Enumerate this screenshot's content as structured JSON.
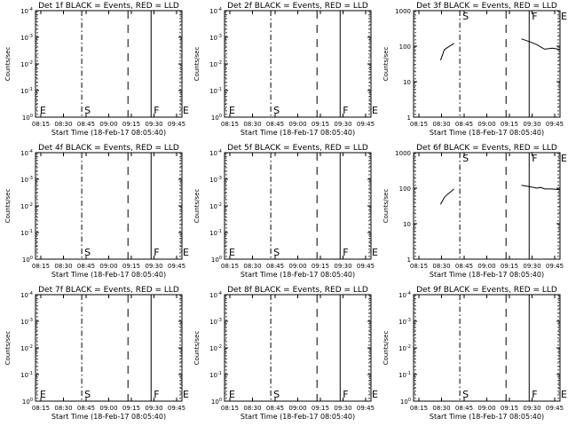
{
  "chart_data": [
    {
      "type": "line",
      "title": "Det 1f BLACK = Events, RED = LLD",
      "xlabel": "Start Time (18-Feb-17 08:05:40)",
      "ylabel": "Counts/sec",
      "y_scale": "log",
      "ylim": [
        1e-06,
        0.0001
      ],
      "xlim": [
        "08:10",
        "08:48"
      ],
      "x_ticks": [
        "08:15",
        "08:30",
        "08:45",
        "09:00",
        "09:15",
        "09:30",
        "09:45"
      ],
      "y_ticks": [
        {
          "mantissa": "10",
          "exp": "0"
        },
        {
          "mantissa": "10",
          "exp": "-1"
        },
        {
          "mantissa": "10",
          "exp": "-2"
        },
        {
          "mantissa": "10",
          "exp": "-3"
        },
        {
          "mantissa": "10",
          "exp": "-4"
        }
      ],
      "markers": [
        {
          "label": "E",
          "x": "08:10",
          "style": "dotted"
        },
        {
          "label": "S",
          "x": "08:22",
          "style": "dashdot"
        },
        {
          "label": "",
          "x": "08:34",
          "style": "dashed"
        },
        {
          "label": "F",
          "x": "08:40",
          "style": "solid"
        },
        {
          "label": "E",
          "x": "08:48",
          "style": "dotted"
        }
      ],
      "series": []
    },
    {
      "type": "line",
      "title": "Det 2f BLACK = Events, RED = LLD",
      "xlabel": "Start Time (18-Feb-17 08:05:40)",
      "ylabel": "Counts/sec",
      "y_scale": "log",
      "xlim": [
        "08:10",
        "08:48"
      ],
      "x_ticks": [
        "08:15",
        "08:30",
        "08:45",
        "09:00",
        "09:15",
        "09:30",
        "09:45"
      ],
      "y_ticks": [
        {
          "mantissa": "10",
          "exp": "0"
        },
        {
          "mantissa": "10",
          "exp": "-1"
        },
        {
          "mantissa": "10",
          "exp": "-2"
        },
        {
          "mantissa": "10",
          "exp": "-3"
        },
        {
          "mantissa": "10",
          "exp": "-4"
        }
      ],
      "markers": [
        {
          "label": "E",
          "x": "08:10",
          "style": "dotted"
        },
        {
          "label": "S",
          "x": "08:22",
          "style": "dashdot"
        },
        {
          "label": "",
          "x": "08:34",
          "style": "dashed"
        },
        {
          "label": "F",
          "x": "08:40",
          "style": "solid"
        },
        {
          "label": "E",
          "x": "08:48",
          "style": "dotted"
        }
      ],
      "series": []
    },
    {
      "type": "line",
      "title": "Det 3f BLACK = Events, RED = LLD",
      "xlabel": "Start Time (18-Feb-17 08:05:40)",
      "ylabel": "Counts/sec",
      "y_scale": "log",
      "ylim": [
        1,
        1000
      ],
      "xlim": [
        "08:10",
        "08:48"
      ],
      "x_ticks": [
        "08:15",
        "08:30",
        "08:45",
        "09:00",
        "09:15",
        "09:30",
        "09:45"
      ],
      "y_ticks": [
        {
          "mantissa": "1",
          "exp": ""
        },
        {
          "mantissa": "10",
          "exp": ""
        },
        {
          "mantissa": "100",
          "exp": ""
        },
        {
          "mantissa": "1000",
          "exp": ""
        }
      ],
      "markers": [
        {
          "label": "",
          "x": "08:10",
          "style": "dotted"
        },
        {
          "label": "S",
          "x": "08:22",
          "style": "dashdot"
        },
        {
          "label": "",
          "x": "08:34",
          "style": "dashed"
        },
        {
          "label": "F",
          "x": "08:40",
          "style": "solid"
        },
        {
          "label": "E",
          "x": "08:48",
          "style": "dotted"
        }
      ],
      "series": [
        {
          "segments": [
            [
              [
                "08:17",
                40
              ],
              [
                "08:18",
                80
              ],
              [
                "08:19",
                95
              ],
              [
                "08:20",
                110
              ],
              [
                "08:20.5",
                120
              ]
            ],
            [
              [
                "08:38",
                160
              ],
              [
                "08:40",
                135
              ],
              [
                "08:42",
                110
              ],
              [
                "08:43",
                95
              ],
              [
                "08:44",
                82
              ],
              [
                "08:46",
                88
              ],
              [
                "08:47",
                84
              ],
              [
                "08:48",
                80
              ]
            ]
          ]
        }
      ]
    },
    {
      "type": "line",
      "title": "Det 4f BLACK = Events, RED = LLD",
      "xlabel": "Start Time (18-Feb-17 08:05:40)",
      "ylabel": "Counts/sec",
      "y_scale": "log",
      "xlim": [
        "08:10",
        "08:48"
      ],
      "x_ticks": [
        "08:15",
        "08:30",
        "08:45",
        "09:00",
        "09:15",
        "09:30",
        "09:45"
      ],
      "y_ticks": [
        {
          "mantissa": "10",
          "exp": "0"
        },
        {
          "mantissa": "10",
          "exp": "-1"
        },
        {
          "mantissa": "10",
          "exp": "-2"
        },
        {
          "mantissa": "10",
          "exp": "-3"
        },
        {
          "mantissa": "10",
          "exp": "-4"
        }
      ],
      "markers": [
        {
          "label": "",
          "x": "08:10",
          "style": "dotted"
        },
        {
          "label": "S",
          "x": "08:22",
          "style": "dashdot"
        },
        {
          "label": "",
          "x": "08:34",
          "style": "dashed"
        },
        {
          "label": "F",
          "x": "08:40",
          "style": "solid"
        },
        {
          "label": "E",
          "x": "08:48",
          "style": "dotted"
        }
      ],
      "series": []
    },
    {
      "type": "line",
      "title": "Det 5f BLACK = Events, RED = LLD",
      "xlabel": "Start Time (18-Feb-17 08:05:40)",
      "ylabel": "Counts/sec",
      "y_scale": "log",
      "xlim": [
        "08:10",
        "08:48"
      ],
      "x_ticks": [
        "08:15",
        "08:30",
        "08:45",
        "09:00",
        "09:15",
        "09:30",
        "09:45"
      ],
      "y_ticks": [
        {
          "mantissa": "10",
          "exp": "0"
        },
        {
          "mantissa": "10",
          "exp": "-1"
        },
        {
          "mantissa": "10",
          "exp": "-2"
        },
        {
          "mantissa": "10",
          "exp": "-3"
        },
        {
          "mantissa": "10",
          "exp": "-4"
        }
      ],
      "markers": [
        {
          "label": "E",
          "x": "08:10",
          "style": "dotted"
        },
        {
          "label": "S",
          "x": "08:22",
          "style": "dashdot"
        },
        {
          "label": "",
          "x": "08:34",
          "style": "dashed"
        },
        {
          "label": "F",
          "x": "08:40",
          "style": "solid"
        },
        {
          "label": "E",
          "x": "08:48",
          "style": "dotted"
        }
      ],
      "series": []
    },
    {
      "type": "line",
      "title": "Det 6f BLACK = Events, RED = LLD",
      "xlabel": "Start Time (18-Feb-17 08:05:40)",
      "ylabel": "Counts/sec",
      "y_scale": "log",
      "ylim": [
        1,
        1000
      ],
      "xlim": [
        "08:10",
        "08:48"
      ],
      "x_ticks": [
        "08:15",
        "08:30",
        "08:45",
        "09:00",
        "09:15",
        "09:30",
        "09:45"
      ],
      "y_ticks": [
        {
          "mantissa": "1",
          "exp": ""
        },
        {
          "mantissa": "10",
          "exp": ""
        },
        {
          "mantissa": "100",
          "exp": ""
        },
        {
          "mantissa": "1000",
          "exp": ""
        }
      ],
      "markers": [
        {
          "label": "",
          "x": "08:10",
          "style": "dotted"
        },
        {
          "label": "S",
          "x": "08:22",
          "style": "dashdot"
        },
        {
          "label": "",
          "x": "08:34",
          "style": "dashed"
        },
        {
          "label": "F",
          "x": "08:40",
          "style": "solid"
        },
        {
          "label": "E",
          "x": "08:48",
          "style": "dotted"
        }
      ],
      "series": [
        {
          "segments": [
            [
              [
                "08:17",
                35
              ],
              [
                "08:18",
                55
              ],
              [
                "08:19",
                70
              ],
              [
                "08:20",
                85
              ],
              [
                "08:20.5",
                95
              ]
            ],
            [
              [
                "08:38",
                120
              ],
              [
                "08:40",
                110
              ],
              [
                "08:42",
                100
              ],
              [
                "08:43",
                105
              ],
              [
                "08:44",
                95
              ],
              [
                "08:46",
                95
              ],
              [
                "08:47",
                92
              ],
              [
                "08:48",
                90
              ]
            ]
          ]
        }
      ]
    },
    {
      "type": "line",
      "title": "Det 7f BLACK = Events, RED = LLD",
      "xlabel": "Start Time (18-Feb-17 08:05:40)",
      "ylabel": "Counts/sec",
      "y_scale": "log",
      "xlim": [
        "08:10",
        "08:48"
      ],
      "x_ticks": [
        "08:15",
        "08:30",
        "08:45",
        "09:00",
        "09:15",
        "09:30",
        "09:45"
      ],
      "y_ticks": [
        {
          "mantissa": "10",
          "exp": "0"
        },
        {
          "mantissa": "10",
          "exp": "-1"
        },
        {
          "mantissa": "10",
          "exp": "-2"
        },
        {
          "mantissa": "10",
          "exp": "-3"
        },
        {
          "mantissa": "10",
          "exp": "-4"
        }
      ],
      "markers": [
        {
          "label": "E",
          "x": "08:10",
          "style": "dotted"
        },
        {
          "label": "S",
          "x": "08:22",
          "style": "dashdot"
        },
        {
          "label": "",
          "x": "08:34",
          "style": "dashed"
        },
        {
          "label": "F",
          "x": "08:40",
          "style": "solid"
        },
        {
          "label": "E",
          "x": "08:48",
          "style": "dotted"
        }
      ],
      "series": []
    },
    {
      "type": "line",
      "title": "Det 8f BLACK = Events, RED = LLD",
      "xlabel": "Start Time (18-Feb-17 08:05:40)",
      "ylabel": "Counts/sec",
      "y_scale": "log",
      "xlim": [
        "08:10",
        "08:48"
      ],
      "x_ticks": [
        "08:15",
        "08:30",
        "08:45",
        "09:00",
        "09:15",
        "09:30",
        "09:45"
      ],
      "y_ticks": [
        {
          "mantissa": "10",
          "exp": "0"
        },
        {
          "mantissa": "10",
          "exp": "-1"
        },
        {
          "mantissa": "10",
          "exp": "-2"
        },
        {
          "mantissa": "10",
          "exp": "-3"
        },
        {
          "mantissa": "10",
          "exp": "-4"
        }
      ],
      "markers": [
        {
          "label": "E",
          "x": "08:10",
          "style": "dotted"
        },
        {
          "label": "S",
          "x": "08:22",
          "style": "dashdot"
        },
        {
          "label": "",
          "x": "08:34",
          "style": "dashed"
        },
        {
          "label": "F",
          "x": "08:40",
          "style": "solid"
        },
        {
          "label": "E",
          "x": "08:48",
          "style": "dotted"
        }
      ],
      "series": []
    },
    {
      "type": "line",
      "title": "Det 9f BLACK = Events, RED = LLD",
      "xlabel": "Start Time (18-Feb-17 08:05:40)",
      "ylabel": "Counts/sec",
      "y_scale": "log",
      "xlim": [
        "08:10",
        "08:48"
      ],
      "x_ticks": [
        "08:15",
        "08:30",
        "08:45",
        "09:00",
        "09:15",
        "09:30",
        "09:45"
      ],
      "y_ticks": [
        {
          "mantissa": "10",
          "exp": "0"
        },
        {
          "mantissa": "10",
          "exp": "-1"
        },
        {
          "mantissa": "10",
          "exp": "-2"
        },
        {
          "mantissa": "10",
          "exp": "-3"
        },
        {
          "mantissa": "10",
          "exp": "-4"
        }
      ],
      "markers": [
        {
          "label": "",
          "x": "08:10",
          "style": "dotted"
        },
        {
          "label": "S",
          "x": "08:22",
          "style": "dashdot"
        },
        {
          "label": "",
          "x": "08:34",
          "style": "dashed"
        },
        {
          "label": "F",
          "x": "08:40",
          "style": "solid"
        },
        {
          "label": "E",
          "x": "08:48",
          "style": "dotted"
        }
      ],
      "series": []
    }
  ]
}
